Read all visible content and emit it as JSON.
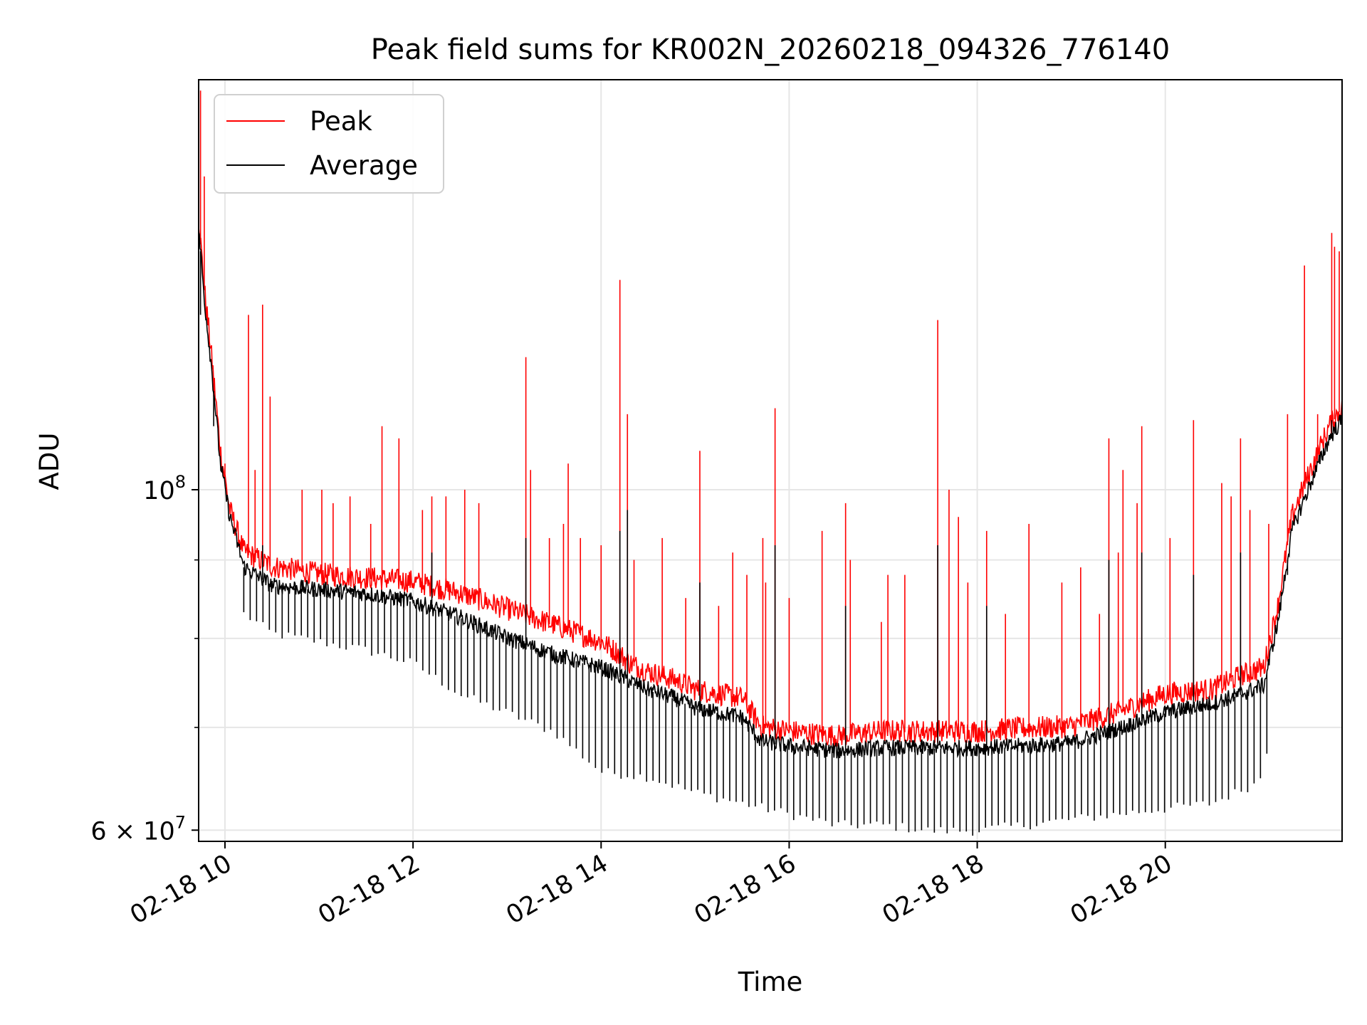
{
  "chart_data": {
    "type": "line",
    "title": "Peak field sums for KR002N_20260218_094326_776140",
    "xlabel": "Time",
    "ylabel": "ADU",
    "yscale": "log",
    "ylim": [
      59000000,
      185000000
    ],
    "xlim": [
      9.72,
      21.88
    ],
    "grid": true,
    "legend_position": "upper-left",
    "x_ticks": [
      {
        "value": 10,
        "label": "02-18 10"
      },
      {
        "value": 12,
        "label": "02-18 12"
      },
      {
        "value": 14,
        "label": "02-18 14"
      },
      {
        "value": 16,
        "label": "02-18 16"
      },
      {
        "value": 18,
        "label": "02-18 18"
      },
      {
        "value": 20,
        "label": "02-18 20"
      }
    ],
    "y_major_ticks": [
      {
        "value": 60000000,
        "base": "6",
        "mult": "×",
        "exp_base": "10",
        "exp": "7"
      },
      {
        "value": 100000000,
        "base": "",
        "mult": "",
        "exp_base": "10",
        "exp": "8"
      }
    ],
    "y_minor_ticks": [
      70000000,
      80000000,
      90000000
    ],
    "series": [
      {
        "name": "Peak",
        "color": "#ff0000",
        "baseline": [
          [
            9.72,
            150000000
          ],
          [
            9.78,
            135000000
          ],
          [
            9.88,
            118000000
          ],
          [
            9.95,
            106000000
          ],
          [
            10.05,
            97000000
          ],
          [
            10.2,
            91000000
          ],
          [
            10.5,
            89000000
          ],
          [
            11.0,
            88000000
          ],
          [
            11.5,
            87500000
          ],
          [
            12.0,
            87000000
          ],
          [
            12.5,
            85500000
          ],
          [
            13.0,
            83500000
          ],
          [
            13.5,
            81500000
          ],
          [
            14.0,
            79500000
          ],
          [
            14.2,
            78000000
          ],
          [
            14.3,
            77000000
          ],
          [
            14.5,
            76000000
          ],
          [
            14.8,
            75000000
          ],
          [
            15.0,
            74000000
          ],
          [
            15.5,
            73000000
          ],
          [
            15.7,
            70000000
          ],
          [
            16.0,
            69500000
          ],
          [
            16.5,
            69000000
          ],
          [
            17.0,
            69500000
          ],
          [
            17.5,
            69500000
          ],
          [
            18.0,
            69500000
          ],
          [
            18.5,
            69800000
          ],
          [
            19.0,
            70000000
          ],
          [
            19.5,
            71500000
          ],
          [
            20.0,
            73500000
          ],
          [
            20.5,
            74000000
          ],
          [
            20.8,
            75500000
          ],
          [
            21.05,
            76500000
          ],
          [
            21.2,
            84000000
          ],
          [
            21.35,
            96000000
          ],
          [
            21.55,
            103000000
          ],
          [
            21.75,
            110000000
          ],
          [
            21.88,
            113000000
          ]
        ],
        "spikes": [
          [
            9.74,
            182000000
          ],
          [
            9.78,
            160000000
          ],
          [
            9.88,
            115000000
          ],
          [
            10.0,
            104000000
          ],
          [
            10.25,
            130000000
          ],
          [
            10.32,
            103000000
          ],
          [
            10.4,
            132000000
          ],
          [
            10.48,
            115000000
          ],
          [
            10.82,
            100000000
          ],
          [
            11.03,
            100000000
          ],
          [
            11.15,
            98000000
          ],
          [
            11.33,
            99000000
          ],
          [
            11.55,
            95000000
          ],
          [
            11.67,
            110000000
          ],
          [
            11.85,
            108000000
          ],
          [
            12.1,
            97000000
          ],
          [
            12.2,
            99000000
          ],
          [
            12.35,
            99000000
          ],
          [
            12.55,
            100000000
          ],
          [
            12.7,
            98000000
          ],
          [
            13.2,
            122000000
          ],
          [
            13.25,
            103000000
          ],
          [
            13.45,
            93000000
          ],
          [
            13.6,
            95000000
          ],
          [
            13.65,
            104000000
          ],
          [
            13.78,
            93000000
          ],
          [
            14.0,
            92000000
          ],
          [
            14.2,
            137000000
          ],
          [
            14.28,
            112000000
          ],
          [
            14.35,
            90000000
          ],
          [
            14.65,
            93000000
          ],
          [
            14.9,
            85000000
          ],
          [
            15.05,
            106000000
          ],
          [
            15.25,
            84000000
          ],
          [
            15.4,
            91000000
          ],
          [
            15.55,
            88000000
          ],
          [
            15.72,
            93000000
          ],
          [
            15.75,
            87000000
          ],
          [
            15.85,
            113000000
          ],
          [
            16.0,
            85000000
          ],
          [
            16.35,
            94000000
          ],
          [
            16.6,
            98000000
          ],
          [
            16.65,
            90000000
          ],
          [
            16.98,
            82000000
          ],
          [
            17.05,
            88000000
          ],
          [
            17.23,
            88000000
          ],
          [
            17.58,
            129000000
          ],
          [
            17.7,
            100000000
          ],
          [
            17.8,
            96000000
          ],
          [
            17.9,
            87000000
          ],
          [
            18.1,
            94000000
          ],
          [
            18.3,
            83000000
          ],
          [
            18.55,
            95000000
          ],
          [
            18.9,
            87000000
          ],
          [
            19.1,
            89000000
          ],
          [
            19.3,
            83000000
          ],
          [
            19.4,
            108000000
          ],
          [
            19.5,
            91000000
          ],
          [
            19.55,
            103000000
          ],
          [
            19.7,
            98000000
          ],
          [
            19.75,
            110000000
          ],
          [
            20.05,
            93000000
          ],
          [
            20.3,
            111000000
          ],
          [
            20.6,
            101000000
          ],
          [
            20.7,
            99000000
          ],
          [
            20.8,
            108000000
          ],
          [
            20.9,
            97000000
          ],
          [
            21.1,
            95000000
          ],
          [
            21.3,
            112000000
          ],
          [
            21.48,
            140000000
          ],
          [
            21.62,
            112000000
          ],
          [
            21.77,
            147000000
          ],
          [
            21.8,
            144000000
          ],
          [
            21.85,
            143000000
          ]
        ]
      },
      {
        "name": "Average",
        "color": "#000000",
        "baseline": [
          [
            9.72,
            148000000
          ],
          [
            9.78,
            133000000
          ],
          [
            9.88,
            116000000
          ],
          [
            9.95,
            104000000
          ],
          [
            10.05,
            96000000
          ],
          [
            10.2,
            89000000
          ],
          [
            10.5,
            86500000
          ],
          [
            11.0,
            86000000
          ],
          [
            11.5,
            85500000
          ],
          [
            12.0,
            84500000
          ],
          [
            12.5,
            82500000
          ],
          [
            13.0,
            80000000
          ],
          [
            13.5,
            78000000
          ],
          [
            14.0,
            76500000
          ],
          [
            14.2,
            75500000
          ],
          [
            14.3,
            75000000
          ],
          [
            14.5,
            74000000
          ],
          [
            14.8,
            73000000
          ],
          [
            15.0,
            72000000
          ],
          [
            15.5,
            71000000
          ],
          [
            15.7,
            68500000
          ],
          [
            16.0,
            68000000
          ],
          [
            16.5,
            67500000
          ],
          [
            17.0,
            67800000
          ],
          [
            17.5,
            67800000
          ],
          [
            18.0,
            67800000
          ],
          [
            18.5,
            68000000
          ],
          [
            19.0,
            68300000
          ],
          [
            19.5,
            69800000
          ],
          [
            20.0,
            71500000
          ],
          [
            20.5,
            72500000
          ],
          [
            20.8,
            73500000
          ],
          [
            21.05,
            74500000
          ],
          [
            21.2,
            82000000
          ],
          [
            21.35,
            94000000
          ],
          [
            21.55,
            101000000
          ],
          [
            21.75,
            108000000
          ],
          [
            21.88,
            111000000
          ]
        ],
        "dips": [
          [
            10.0,
            84000000
          ],
          [
            10.5,
            80000000
          ],
          [
            11.0,
            79000000
          ],
          [
            11.5,
            78000000
          ],
          [
            12.0,
            76500000
          ],
          [
            12.5,
            73000000
          ],
          [
            13.0,
            71000000
          ],
          [
            13.5,
            69000000
          ],
          [
            14.0,
            65000000
          ],
          [
            14.5,
            64500000
          ],
          [
            15.0,
            63000000
          ],
          [
            15.5,
            62000000
          ],
          [
            16.0,
            61000000
          ],
          [
            16.5,
            60000000
          ],
          [
            17.0,
            60000000
          ],
          [
            17.5,
            59500000
          ],
          [
            18.0,
            59500000
          ],
          [
            18.5,
            60000000
          ],
          [
            19.0,
            60500000
          ],
          [
            19.5,
            61000000
          ],
          [
            20.0,
            61500000
          ],
          [
            20.5,
            62000000
          ],
          [
            21.0,
            64000000
          ],
          [
            21.15,
            70000000
          ]
        ],
        "spikes": [
          [
            9.74,
            130000000
          ],
          [
            9.88,
            110000000
          ],
          [
            10.4,
            92000000
          ],
          [
            12.2,
            91000000
          ],
          [
            13.2,
            93000000
          ],
          [
            14.2,
            94000000
          ],
          [
            14.28,
            97000000
          ],
          [
            15.05,
            87000000
          ],
          [
            15.85,
            92000000
          ],
          [
            16.6,
            84000000
          ],
          [
            17.58,
            92000000
          ],
          [
            18.1,
            84000000
          ],
          [
            19.4,
            90000000
          ],
          [
            19.75,
            91000000
          ],
          [
            20.3,
            88000000
          ],
          [
            20.8,
            91000000
          ],
          [
            21.3,
            88000000
          ],
          [
            21.77,
            111000000
          ]
        ]
      }
    ]
  }
}
